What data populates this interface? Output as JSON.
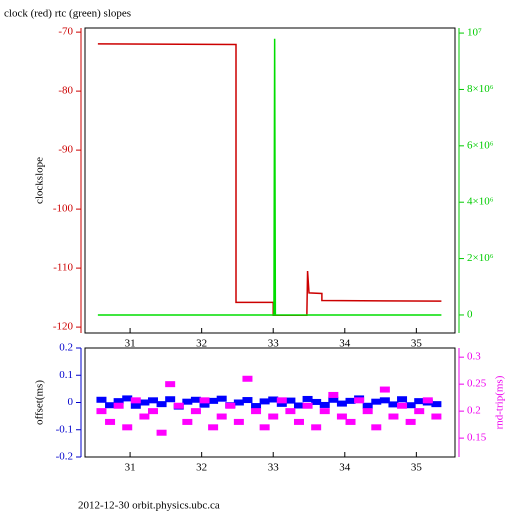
{
  "chart_data": [
    {
      "type": "line",
      "title": "clock (red) rtc (green) slopes",
      "ylabel": "clockslope",
      "xlim": [
        30.37,
        35.54
      ],
      "ylim": [
        -121,
        -69.3
      ],
      "y2lim": [
        -640000,
        10180000
      ],
      "xticks": [
        31,
        32,
        33,
        34,
        35
      ],
      "yticks": [
        -70,
        -80,
        -90,
        -100,
        -110,
        -120
      ],
      "y2ticks": [
        0,
        {
          "value": 2000000,
          "label": "2×10⁶"
        },
        {
          "value": 4000000,
          "label": "4×10⁶"
        },
        {
          "value": 6000000,
          "label": "6×10⁶"
        },
        {
          "value": 8000000,
          "label": "8×10⁶"
        },
        {
          "value": 10000000,
          "label": "10⁷"
        }
      ],
      "axis_color": "#cc0000",
      "y2_color": "#00cc00",
      "series": [
        {
          "color": "#cc0000",
          "x": [
            30.55,
            32.48,
            32.48,
            33.0,
            33.0,
            33.47,
            33.48,
            33.5,
            33.68,
            33.68,
            35.35
          ],
          "values": [
            -72,
            -72.1,
            -115.8,
            -115.8,
            -118,
            -118,
            -110.5,
            -114.2,
            -114.3,
            -115.5,
            -115.6
          ]
        },
        {
          "color": "#00dd00",
          "axis": "y2",
          "x": [
            30.55,
            33.01,
            33.02,
            33.03,
            35.35
          ],
          "values": [
            0,
            0,
            9800000,
            0,
            0
          ]
        }
      ]
    },
    {
      "type": "scatter",
      "ylabel": "offset(ms)",
      "y2label": "rnd-trip(ms)",
      "xlim": [
        30.37,
        35.54
      ],
      "ylim": [
        -0.2,
        0.2
      ],
      "y2lim": [
        0.115,
        0.317
      ],
      "xticks": [
        31,
        32,
        33,
        34,
        35
      ],
      "yticks": [
        0.2,
        0.1,
        0,
        -0.1,
        -0.2
      ],
      "y2ticks": [
        0.3,
        0.25,
        0.2,
        0.15
      ],
      "axis_color": "#0000cc",
      "y2_color": "#ee00ee",
      "series": [
        {
          "color": "#0000ff",
          "x": [
            30.6,
            30.72,
            30.84,
            30.96,
            31.08,
            31.2,
            31.32,
            31.44,
            31.56,
            31.68,
            31.8,
            31.92,
            32.04,
            32.16,
            32.28,
            32.4,
            32.52,
            32.64,
            32.76,
            32.88,
            33.0,
            33.12,
            33.24,
            33.36,
            33.48,
            33.6,
            33.72,
            33.84,
            33.96,
            34.08,
            34.2,
            34.32,
            34.44,
            34.56,
            34.68,
            34.8,
            34.92,
            35.04,
            35.16,
            35.28
          ],
          "values": [
            0.01,
            -0.01,
            0.005,
            0.015,
            -0.012,
            0.0,
            0.008,
            -0.006,
            0.012,
            -0.015,
            0.003,
            0.01,
            -0.008,
            0.006,
            0.014,
            -0.01,
            0.0,
            0.009,
            -0.013,
            0.004,
            0.011,
            -0.005,
            0.007,
            -0.011,
            0.013,
            0.002,
            -0.009,
            0.01,
            -0.004,
            0.006,
            0.015,
            -0.012,
            0.003,
            0.008,
            -0.007,
            0.012,
            -0.01,
            0.005,
            0.0,
            -0.006
          ]
        },
        {
          "color": "#ff00ff",
          "axis": "y2",
          "x": [
            30.6,
            30.72,
            30.84,
            30.96,
            31.08,
            31.2,
            31.32,
            31.44,
            31.56,
            31.68,
            31.8,
            31.92,
            32.04,
            32.16,
            32.28,
            32.4,
            32.52,
            32.64,
            32.76,
            32.88,
            33.0,
            33.12,
            33.24,
            33.36,
            33.48,
            33.6,
            33.72,
            33.84,
            33.96,
            34.08,
            34.2,
            34.32,
            34.44,
            34.56,
            34.68,
            34.8,
            34.92,
            35.04,
            35.16,
            35.28
          ],
          "values": [
            0.2,
            0.18,
            0.21,
            0.17,
            0.22,
            0.19,
            0.2,
            0.16,
            0.25,
            0.21,
            0.18,
            0.2,
            0.22,
            0.17,
            0.19,
            0.21,
            0.18,
            0.26,
            0.2,
            0.17,
            0.19,
            0.22,
            0.2,
            0.18,
            0.21,
            0.17,
            0.2,
            0.23,
            0.19,
            0.18,
            0.22,
            0.2,
            0.17,
            0.24,
            0.19,
            0.21,
            0.18,
            0.2,
            0.22,
            0.19
          ]
        }
      ]
    }
  ],
  "footer": "2012-12-30 orbit.physics.ubc.ca"
}
